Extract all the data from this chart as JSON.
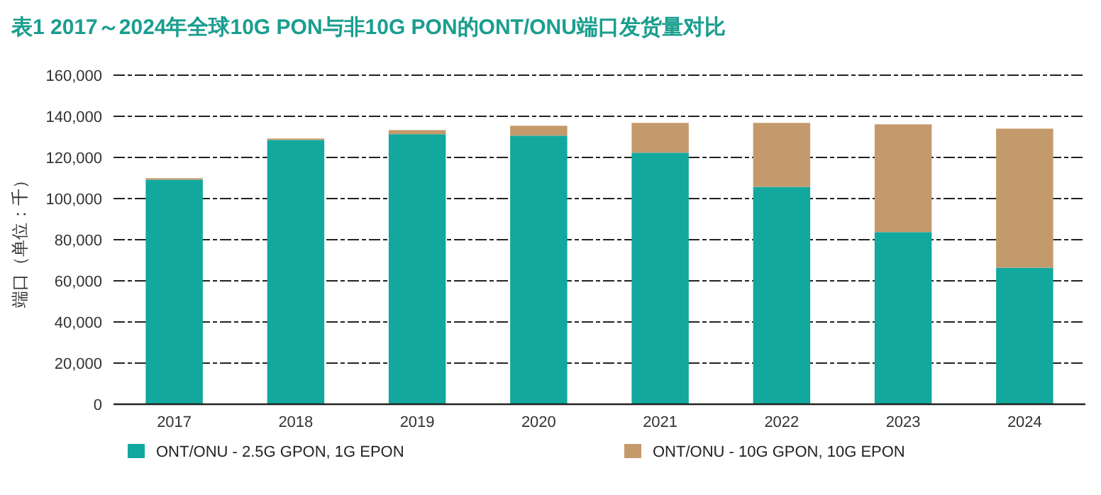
{
  "chart_data": {
    "type": "bar",
    "title": "表1  2017～2024年全球10G PON与非10G PON的ONT/ONU端口发货量对比",
    "ylabel": "端口（单位：千）",
    "categories": [
      "2017",
      "2018",
      "2019",
      "2020",
      "2021",
      "2022",
      "2023",
      "2024"
    ],
    "stacked": true,
    "series": [
      {
        "name": "ONT/ONU - 2.5G GPON, 1G EPON",
        "color": "#12a89d",
        "values": [
          109200,
          128500,
          131300,
          130600,
          122300,
          105700,
          83700,
          66400
        ]
      },
      {
        "name": "ONT/ONU - 10G GPON, 10G EPON",
        "color": "#c49a6c",
        "values": [
          700,
          700,
          2000,
          4800,
          14500,
          31100,
          52400,
          67600
        ]
      }
    ],
    "ylim": [
      0,
      160000
    ],
    "yticks": [
      {
        "value": 0,
        "label": "0"
      },
      {
        "value": 20000,
        "label": "20,000"
      },
      {
        "value": 40000,
        "label": "40,000"
      },
      {
        "value": 60000,
        "label": "60,000"
      },
      {
        "value": 80000,
        "label": "80,000"
      },
      {
        "value": 100000,
        "label": "100,000"
      },
      {
        "value": 120000,
        "label": "120,000"
      },
      {
        "value": 140000,
        "label": "140,000"
      },
      {
        "value": 160000,
        "label": "160,000"
      }
    ],
    "grid": "y",
    "legend": "bottom"
  }
}
